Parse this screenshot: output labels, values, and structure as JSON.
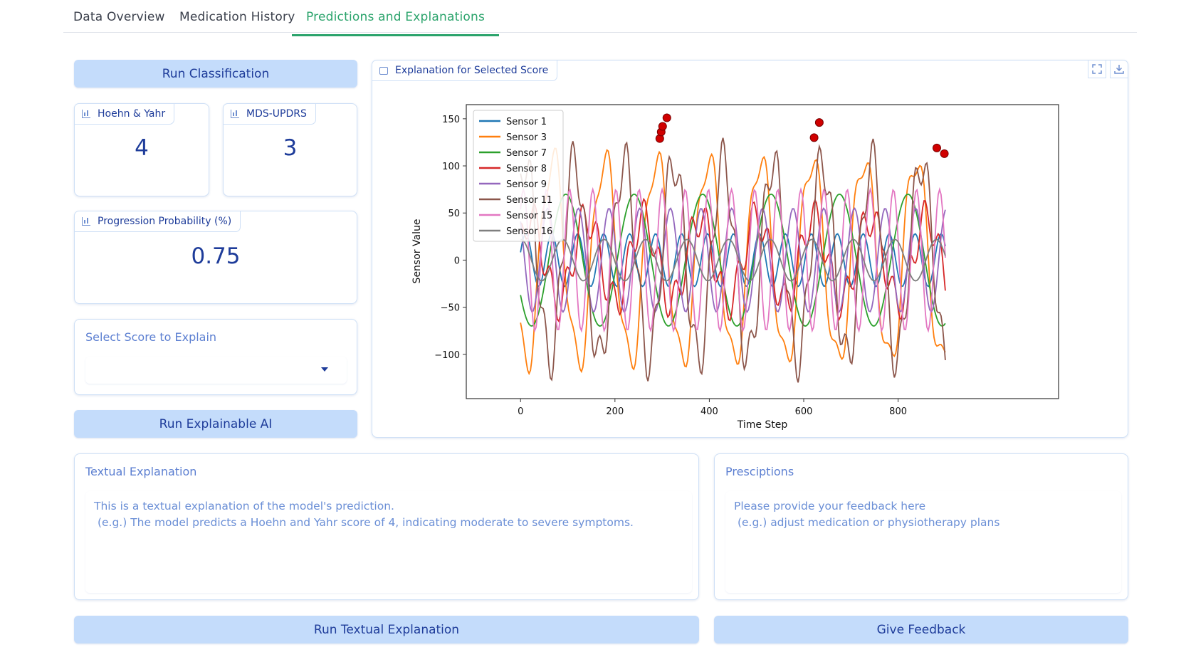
{
  "tabs": [
    {
      "label": "Data Overview"
    },
    {
      "label": "Medication History"
    },
    {
      "label": "Predictions and Explanations"
    }
  ],
  "active_tab": "Predictions and Explanations",
  "buttons": {
    "run_classification": "Run Classification",
    "run_explainable_ai": "Run Explainable AI",
    "run_textual_explanation": "Run Textual Explanation",
    "give_feedback": "Give Feedback"
  },
  "scores": {
    "hoehn_yahr": {
      "label": "Hoehn & Yahr",
      "value": "4"
    },
    "mds_updrs": {
      "label": "MDS-UPDRS",
      "value": "3"
    },
    "progression": {
      "label": "Progression Probability (%)",
      "value": "0.75"
    }
  },
  "select_score": {
    "label": "Select Score to Explain",
    "value": ""
  },
  "explanation_panel": {
    "label": "Explanation for Selected Score"
  },
  "textual_explanation": {
    "label": "Textual Explanation",
    "placeholder": "This is a textual explanation of the model's prediction.\n (e.g.) The model predicts a Hoehn and Yahr score of 4, indicating moderate to severe symptoms."
  },
  "prescriptions": {
    "label": "Presciptions",
    "placeholder": "Please provide your feedback here\n (e.g.) adjust medication or physiotherapy plans"
  },
  "icons": {
    "score_label": "bar-chart-icon",
    "plot_label": "image-icon",
    "fullscreen": "fullscreen-icon",
    "download": "download-icon",
    "dropdown": "chevron-down-icon"
  },
  "colors": {
    "accent_green": "#2aa36b",
    "button_bg": "#c4dcfb",
    "button_text": "#1e3c9a"
  },
  "chart_data": {
    "type": "line",
    "xlabel": "Time Step",
    "ylabel": "Sensor Value",
    "xlim": [
      -115,
      1140
    ],
    "ylim": [
      -147,
      165
    ],
    "x_ticks": [
      0,
      200,
      400,
      600,
      800
    ],
    "y_ticks": [
      150,
      100,
      50,
      0,
      -50,
      -100
    ],
    "x_range": [
      0,
      900
    ],
    "legend_position": "top-left",
    "series": [
      {
        "name": "Sensor 1",
        "color": "#1f77b4",
        "components": [
          [
            28,
            55,
            0.3
          ]
        ]
      },
      {
        "name": "Sensor 3",
        "color": "#ff7f0e",
        "components": [
          [
            110,
            110,
            4.0
          ],
          [
            20,
            37,
            1.0
          ]
        ]
      },
      {
        "name": "Sensor 7",
        "color": "#2ca02c",
        "components": [
          [
            70,
            145,
            3.7
          ]
        ]
      },
      {
        "name": "Sensor 8",
        "color": "#d62728",
        "components": [
          [
            45,
            120,
            0.5
          ],
          [
            20,
            33,
            2.0
          ]
        ]
      },
      {
        "name": "Sensor 9",
        "color": "#9467bd",
        "components": [
          [
            55,
            65,
            2.3
          ]
        ]
      },
      {
        "name": "Sensor 11",
        "color": "#8c564b",
        "components": [
          [
            105,
            105,
            1.0
          ],
          [
            25,
            29,
            3.0
          ]
        ]
      },
      {
        "name": "Sensor 15",
        "color": "#e377c2",
        "components": [
          [
            75,
            49,
            0.8
          ]
        ]
      },
      {
        "name": "Sensor 16",
        "color": "#7f7f7f",
        "components": [
          [
            22,
            88,
            1.5
          ]
        ]
      }
    ],
    "highlight_points": [
      {
        "x": 295,
        "y": 129
      },
      {
        "x": 298,
        "y": 136
      },
      {
        "x": 301,
        "y": 142
      },
      {
        "x": 310,
        "y": 151
      },
      {
        "x": 622,
        "y": 130
      },
      {
        "x": 633,
        "y": 146
      },
      {
        "x": 882,
        "y": 119
      },
      {
        "x": 898,
        "y": 113
      }
    ]
  }
}
